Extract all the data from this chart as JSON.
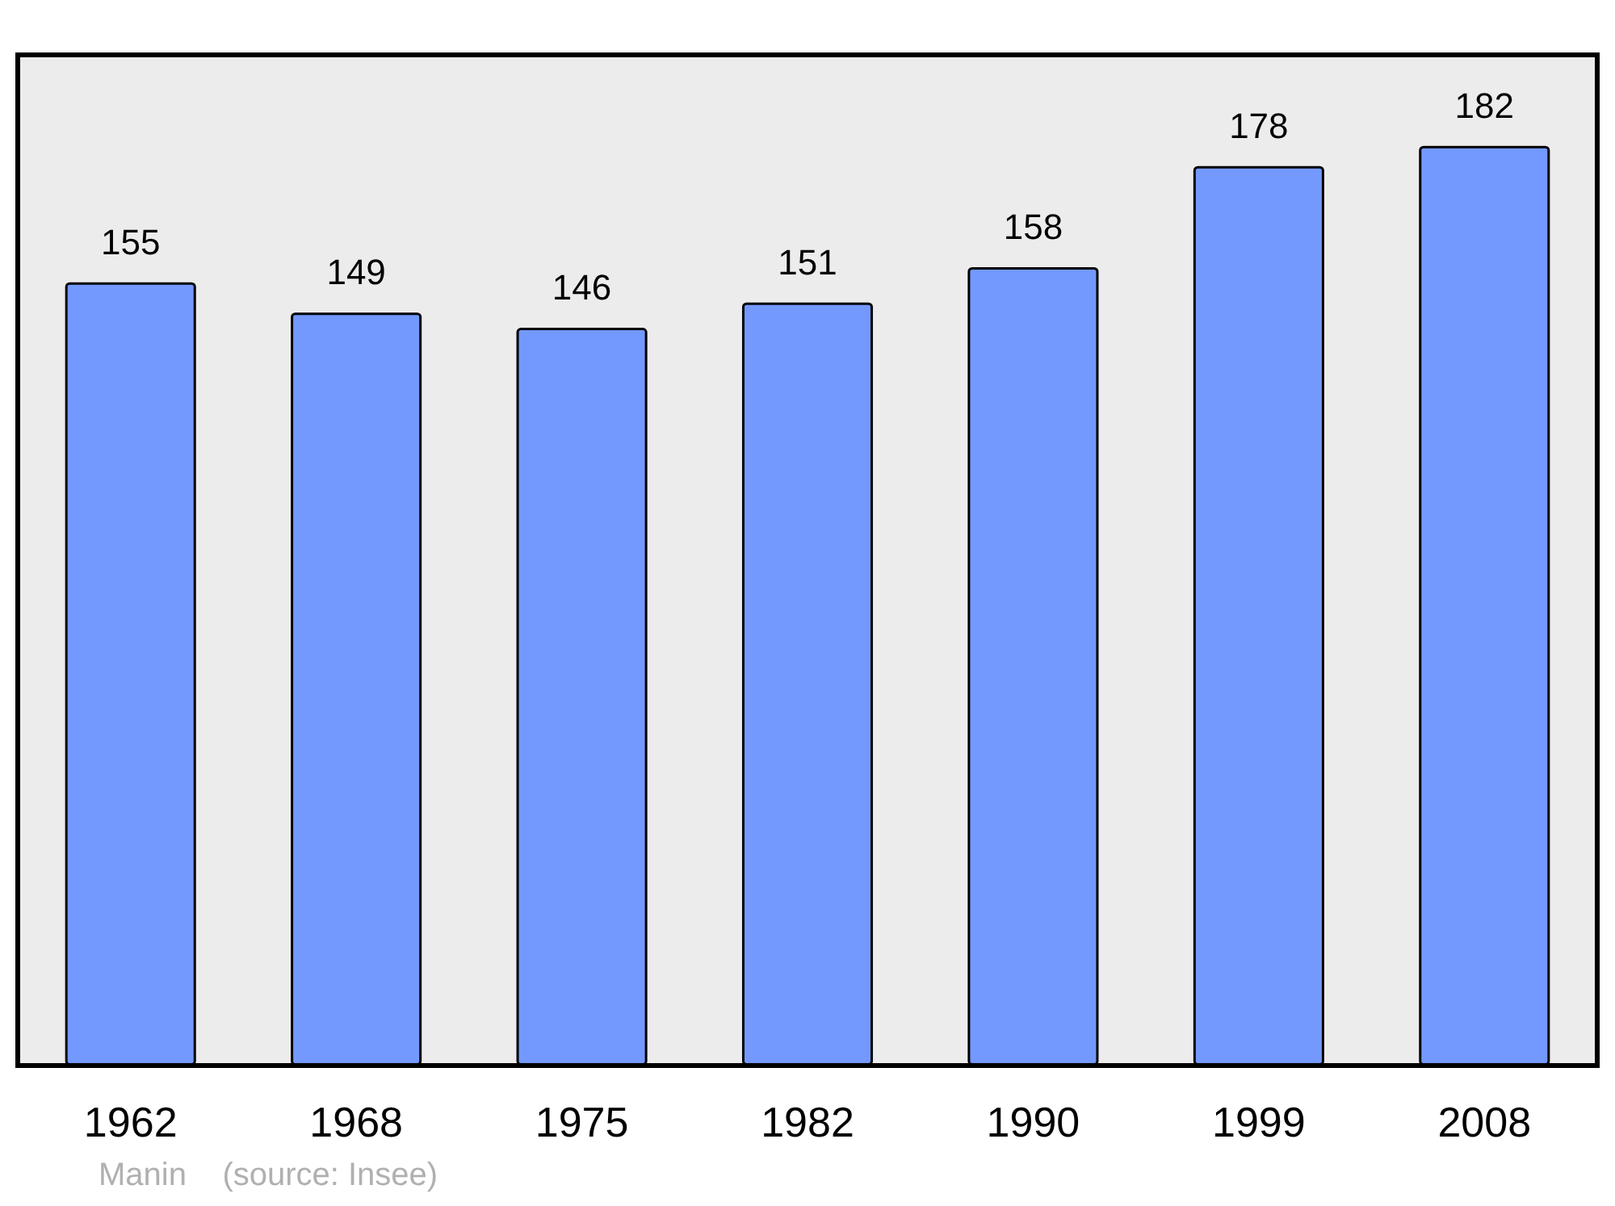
{
  "chart_data": {
    "type": "bar",
    "categories": [
      "1962",
      "1968",
      "1975",
      "1982",
      "1990",
      "1999",
      "2008"
    ],
    "values": [
      155,
      149,
      146,
      151,
      158,
      178,
      182
    ],
    "color": "#7399ff",
    "ylim": [
      0,
      200
    ],
    "tick_labels": "x",
    "data_labels": true,
    "annotations": [
      "Manin    (source: Insee)"
    ]
  }
}
